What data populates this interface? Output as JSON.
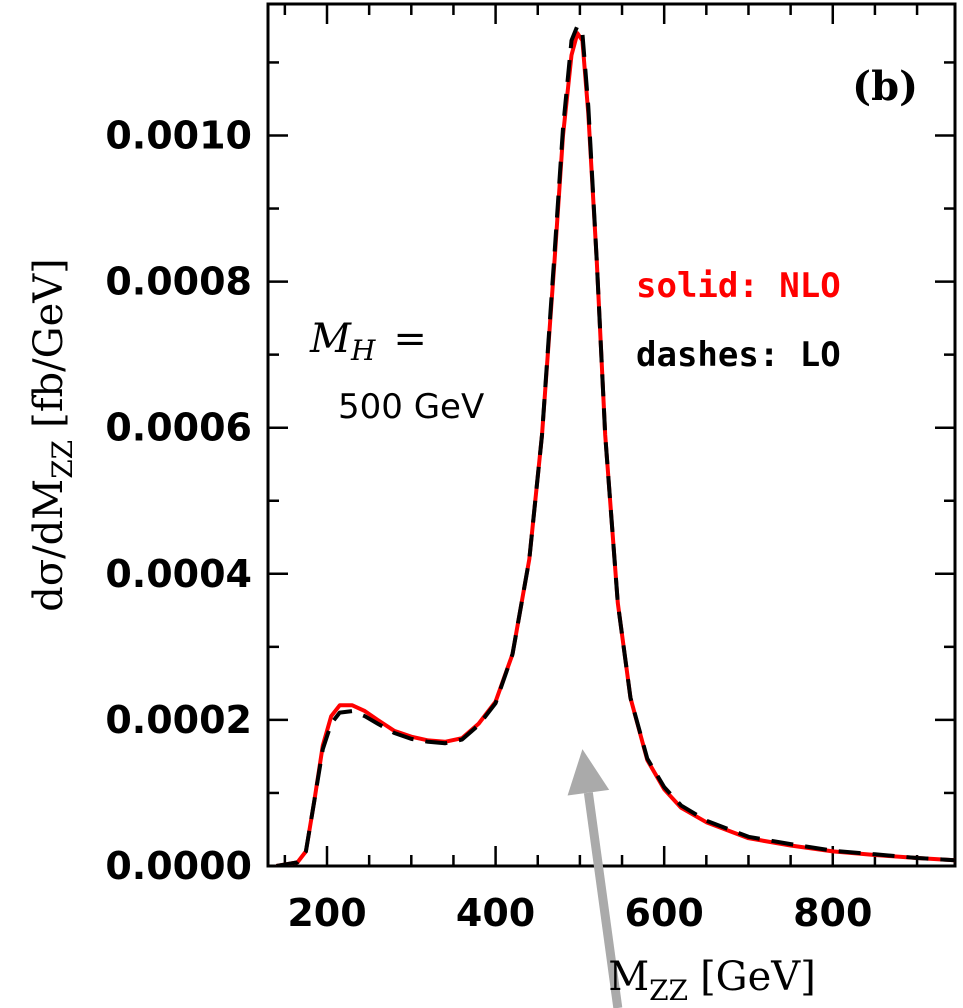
{
  "chart_data": {
    "type": "line",
    "panel_label": "(b)",
    "xlabel_main": "M",
    "xlabel_sub": "ZZ",
    "xlabel_unit": "[GeV]",
    "ylabel_main": "dσ/dM",
    "ylabel_sub": "ZZ",
    "ylabel_unit": "[fb/GeV]",
    "xlim": [
      130,
      945
    ],
    "ylim": [
      0,
      0.00118
    ],
    "x_ticks": [
      200,
      400,
      600,
      800
    ],
    "x_tick_labels": [
      "200",
      "400",
      "600",
      "800"
    ],
    "y_ticks": [
      0,
      0.0002,
      0.0004,
      0.0006,
      0.0008,
      0.001
    ],
    "y_tick_labels": [
      "0.0000",
      "0.0002",
      "0.0004",
      "0.0006",
      "0.0008",
      "0.0010"
    ],
    "annotation_mh_symbol": "M",
    "annotation_mh_sub": "H",
    "annotation_mh_eq": "=",
    "annotation_mh_value": "500 GeV",
    "legend": [
      {
        "text": "solid:  NLO",
        "color": "#ff0000"
      },
      {
        "text": "dashes:  LO",
        "color": "#000000"
      }
    ],
    "arrow_color": "#aaaaaa",
    "series": [
      {
        "name": "NLO",
        "style": "solid",
        "color": "#ff0000",
        "x": [
          140,
          165,
          175,
          185,
          195,
          205,
          215,
          230,
          245,
          260,
          280,
          300,
          320,
          340,
          360,
          380,
          400,
          420,
          440,
          455,
          470,
          480,
          490,
          497,
          503,
          510,
          520,
          530,
          545,
          560,
          580,
          600,
          620,
          650,
          700,
          750,
          800,
          850,
          900,
          945
        ],
        "y": [
          0.0,
          5e-06,
          2e-05,
          9e-05,
          0.000165,
          0.000205,
          0.00022,
          0.00022,
          0.000212,
          0.0002,
          0.000185,
          0.000177,
          0.000172,
          0.00017,
          0.000175,
          0.000195,
          0.000225,
          0.00029,
          0.00042,
          0.00059,
          0.00083,
          0.001,
          0.00111,
          0.00114,
          0.00113,
          0.00103,
          0.00083,
          0.00059,
          0.00036,
          0.00023,
          0.000145,
          0.000105,
          8e-05,
          6e-05,
          3.8e-05,
          2.8e-05,
          2e-05,
          1.5e-05,
          1.1e-05,
          8e-06
        ]
      },
      {
        "name": "LO",
        "style": "dashed",
        "color": "#000000",
        "x": [
          140,
          165,
          175,
          185,
          195,
          205,
          215,
          230,
          245,
          260,
          280,
          300,
          320,
          340,
          360,
          380,
          400,
          420,
          440,
          455,
          470,
          480,
          490,
          497,
          503,
          510,
          520,
          530,
          545,
          560,
          580,
          600,
          620,
          650,
          700,
          750,
          800,
          850,
          900,
          945
        ],
        "y": [
          0.0,
          5e-06,
          2e-05,
          9e-05,
          0.00016,
          0.000195,
          0.00021,
          0.000212,
          0.000205,
          0.000195,
          0.000182,
          0.000174,
          0.00017,
          0.000168,
          0.000173,
          0.000193,
          0.000223,
          0.00029,
          0.00042,
          0.00059,
          0.00084,
          0.00101,
          0.00113,
          0.00115,
          0.00114,
          0.00104,
          0.00083,
          0.00059,
          0.00036,
          0.00023,
          0.000147,
          0.000108,
          8.3e-05,
          6.2e-05,
          4e-05,
          3e-05,
          2.1e-05,
          1.6e-05,
          1.1e-05,
          8e-06
        ]
      }
    ]
  }
}
